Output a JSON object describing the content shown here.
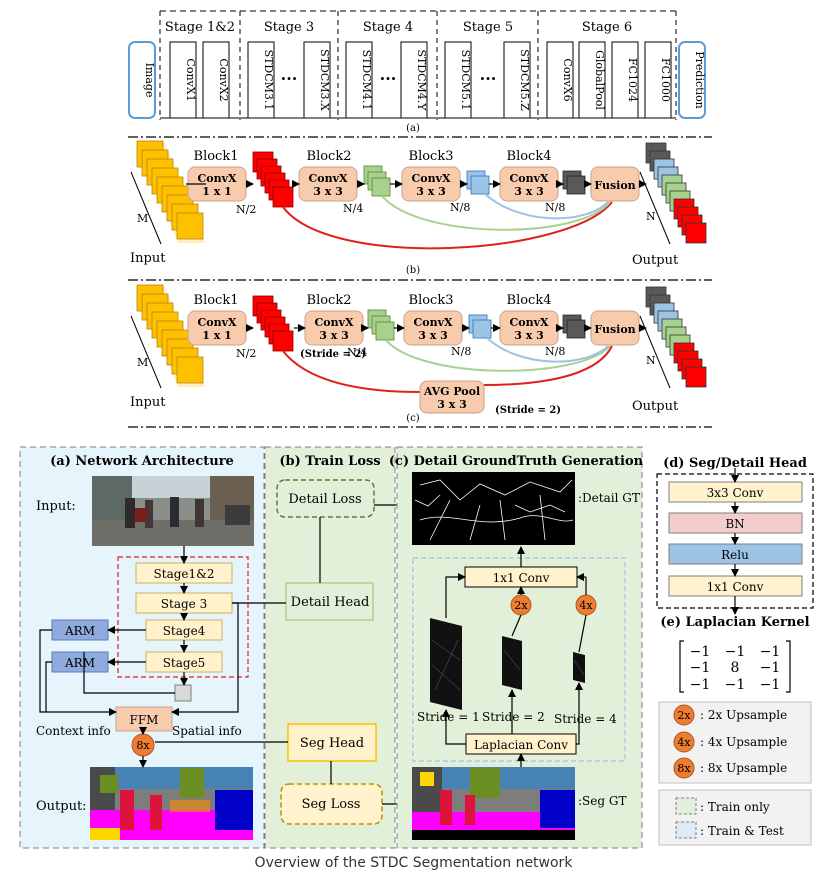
{
  "fig_a": {
    "image": "Image",
    "prediction": "Prediction",
    "stages": [
      {
        "title": "Stage 1&2",
        "blocks": [
          "ConvX1",
          "ConvX2"
        ]
      },
      {
        "title": "Stage 3",
        "blocks": [
          "STDCM3.1",
          "STDCM3.X"
        ]
      },
      {
        "title": "Stage 4",
        "blocks": [
          "STDCM4.1",
          "STDCM4.Y"
        ]
      },
      {
        "title": "Stage 5",
        "blocks": [
          "STDCM5.1",
          "STDCM5.Z"
        ]
      },
      {
        "title": "Stage 6",
        "blocks": [
          "ConvX6",
          "GlobalPool",
          "FC1024",
          "FC1000"
        ]
      }
    ],
    "ellipsis": "···",
    "label": "(a)"
  },
  "fig_b": {
    "label": "(b)",
    "blocks": [
      {
        "title": "Block1",
        "line1": "ConvX",
        "line2": "1 x 1"
      },
      {
        "title": "Block2",
        "line1": "ConvX",
        "line2": "3 x 3"
      },
      {
        "title": "Block3",
        "line1": "ConvX",
        "line2": "3 x 3"
      },
      {
        "title": "Block4",
        "line1": "ConvX",
        "line2": "3 x 3"
      }
    ],
    "fusion": "Fusion",
    "input": "Input",
    "output": "Output",
    "m": "M",
    "n": "N",
    "n2": "N/2",
    "n4": "N/4",
    "n8a": "N/8",
    "n8b": "N/8"
  },
  "fig_c": {
    "label": "(c)",
    "stride_note": "(Stride = 2)",
    "avgpool_line1": "AVG Pool",
    "avgpool_line2": "3 x 3",
    "avgpool_stride": "(Stride = 2)"
  },
  "bottom": {
    "arch": {
      "title": "(a) Network Architecture",
      "input": "Input:",
      "output": "Output:",
      "stages": [
        "Stage1&2",
        "Stage 3",
        "Stage4",
        "Stage5"
      ],
      "arm": "ARM",
      "ffm": "FFM",
      "upsample": "8x",
      "context": "Context info",
      "spatial": "Spatial info"
    },
    "loss": {
      "title": "(b) Train Loss",
      "detail_loss": "Detail Loss",
      "detail_head": "Detail Head",
      "seg_head": "Seg Head",
      "seg_loss": "Seg Loss"
    },
    "gt": {
      "title": "(c) Detail GroundTruth Generation",
      "detail_gt": ":Detail GT",
      "seg_gt": ":Seg GT",
      "conv1": "1x1 Conv",
      "laplacian": "Laplacian Conv",
      "strides": [
        "Stride = 1",
        "Stride = 2",
        "Stride = 4"
      ],
      "up2": "2x",
      "up4": "4x"
    },
    "head": {
      "title": "(d) Seg/Detail Head",
      "layers": [
        "3x3 Conv",
        "BN",
        "Relu",
        "1x1 Conv"
      ]
    },
    "kernel": {
      "title": "(e) Laplacian Kernel",
      "rows": [
        [
          "−1",
          "−1",
          "−1"
        ],
        [
          "−1",
          "8",
          "−1"
        ],
        [
          "−1",
          "−1",
          "−1"
        ]
      ]
    },
    "legend": {
      "items": [
        {
          "badge": "2x",
          "text": ": 2x Upsample"
        },
        {
          "badge": "4x",
          "text": ": 4x Upsample"
        },
        {
          "badge": "8x",
          "text": ": 8x Upsample"
        }
      ],
      "train_only": ": Train only",
      "train_test": ": Train & Test"
    }
  },
  "caption": "Overview of the STDC Segmentation network",
  "colors": {
    "peach": "#f8cbad",
    "orange": "#ed7d31",
    "red": "#ff0000",
    "green": "#a9d18e",
    "blue": "#9dc3e6",
    "gray": "#595959",
    "yellow": "#ffc000",
    "light_green_bg": "#e2f0d9",
    "light_blue_bg": "#deebf7",
    "cream": "#fff2cc"
  }
}
